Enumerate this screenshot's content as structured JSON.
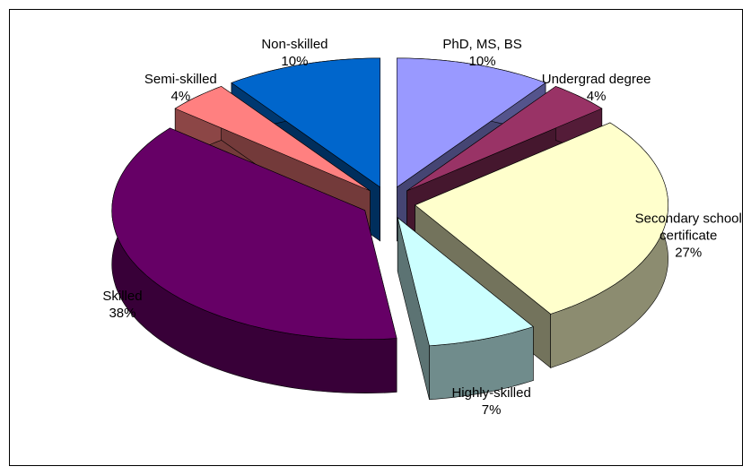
{
  "chart_data": {
    "type": "pie3d",
    "categories": [
      "PhD, MS, BS",
      "Undergrad degree",
      "Secondary school certificate",
      "Highly-skilled",
      "Skilled",
      "Semi-skilled",
      "Non-skilled"
    ],
    "values": [
      10,
      4,
      27,
      7,
      38,
      4,
      10
    ],
    "value_labels": [
      "10%",
      "4%",
      "27%",
      "7%",
      "38%",
      "4%",
      "10%"
    ],
    "colors": [
      "#9999ff",
      "#993366",
      "#ffffcc",
      "#ccffff",
      "#660066",
      "#ff8080",
      "#0066cc"
    ]
  }
}
